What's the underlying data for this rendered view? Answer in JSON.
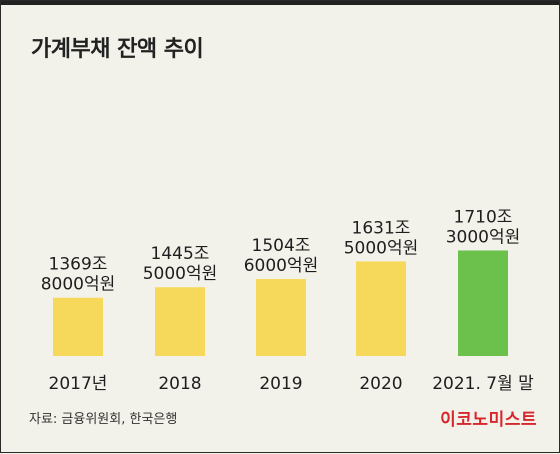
{
  "title": "가계부채 잔액 추이",
  "source": "자료: 금융위원회, 한국은행",
  "brand": "이코노미스트",
  "colors": {
    "bar": "#f6d95b",
    "highlight": "#6bc14c"
  },
  "chart_data": {
    "type": "bar",
    "title": "가계부채 잔액 추이",
    "categories": [
      "2017년",
      "2018",
      "2019",
      "2020",
      "2021. 7월 말"
    ],
    "values": [
      1369.8,
      1445.5,
      1504.6,
      1631.5,
      1710.3
    ],
    "value_labels": [
      [
        "1369조",
        "8000억원"
      ],
      [
        "1445조",
        "5000억원"
      ],
      [
        "1504조",
        "6000억원"
      ],
      [
        "1631조",
        "5000억원"
      ],
      [
        "1710조",
        "3000억원"
      ]
    ],
    "highlight_index": 4,
    "xlabel": "",
    "ylabel": "",
    "ylim": [
      0,
      1800
    ],
    "grid": false
  }
}
